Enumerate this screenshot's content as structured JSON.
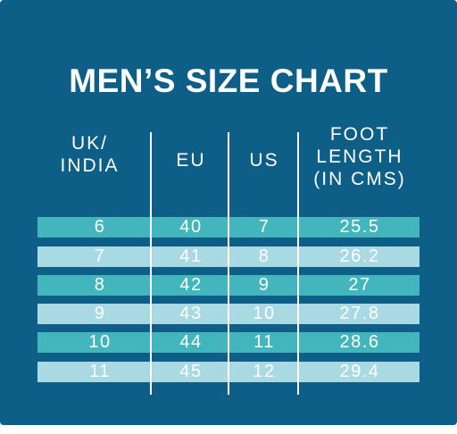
{
  "title": "MEN’S SIZE CHART",
  "headers": {
    "uk": [
      "UK/",
      "INDIA"
    ],
    "eu": "EU",
    "us": "US",
    "foot": [
      "FOOT",
      "LENGTH",
      "(IN CMS)"
    ]
  },
  "rows": [
    {
      "uk": "6",
      "eu": "40",
      "us": "7",
      "foot": "25.5"
    },
    {
      "uk": "7",
      "eu": "41",
      "us": "8",
      "foot": "26.2"
    },
    {
      "uk": "8",
      "eu": "42",
      "us": "9",
      "foot": "27"
    },
    {
      "uk": "9",
      "eu": "43",
      "us": "10",
      "foot": "27.8"
    },
    {
      "uk": "10",
      "eu": "44",
      "us": "11",
      "foot": "28.6"
    },
    {
      "uk": "11",
      "eu": "45",
      "us": "12",
      "foot": "29.4"
    }
  ],
  "colors": {
    "background": "#0d5f87",
    "row_dark": "#43b5bd",
    "row_light": "#a9d9e2",
    "text": "#ffffff"
  }
}
